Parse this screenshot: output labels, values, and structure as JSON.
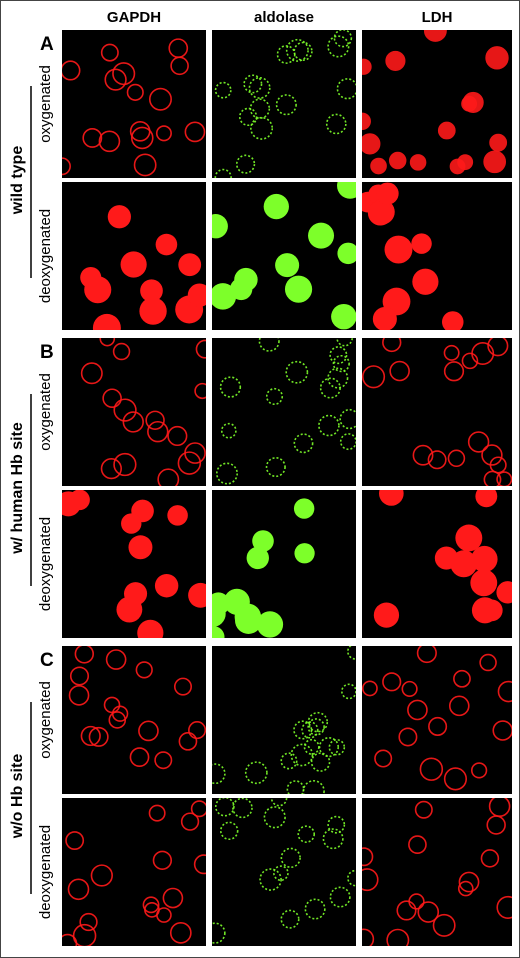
{
  "column_headers": [
    "GAPDH",
    "aldolase",
    "LDH"
  ],
  "panels": [
    {
      "letter": "A",
      "group": "wild type",
      "rows": [
        "oxygenated",
        "deoxygenated"
      ]
    },
    {
      "letter": "B",
      "group": "w/ human Hb site",
      "rows": [
        "oxygenated",
        "deoxygenated"
      ]
    },
    {
      "letter": "C",
      "group": "w/o Hb site",
      "rows": [
        "oxygenated",
        "deoxygenated"
      ]
    }
  ]
}
